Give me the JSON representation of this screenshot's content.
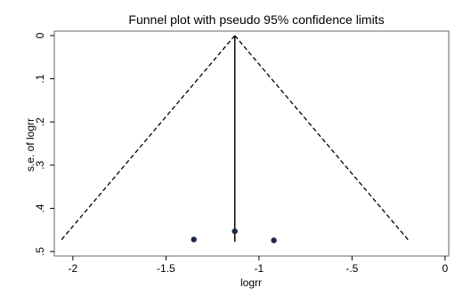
{
  "chart_data": {
    "type": "scatter",
    "title": "Funnel plot with pseudo 95% confidence limits",
    "xlabel": "logrr",
    "ylabel": "s.e. of logrr",
    "xlim": [
      -2.1,
      0.02
    ],
    "ylim": [
      0.5,
      0
    ],
    "y_reversed": true,
    "x_ticks": [
      -2,
      -1.5,
      -1,
      -0.5,
      0
    ],
    "x_tick_labels": [
      "-2",
      "-1.5",
      "-1",
      "-.5",
      "0"
    ],
    "y_ticks": [
      0,
      0.1,
      0.2,
      0.3,
      0.4,
      0.5
    ],
    "y_tick_labels": [
      "0",
      ".1",
      ".2",
      ".3",
      ".4",
      ".5"
    ],
    "grid": false,
    "legend": "none",
    "points": [
      {
        "x": -1.35,
        "y": 0.472
      },
      {
        "x": -1.13,
        "y": 0.453
      },
      {
        "x": -0.92,
        "y": 0.474
      }
    ],
    "pooled_estimate": {
      "x": -1.13,
      "y_from": 0,
      "y_to": 0.477
    },
    "ci_limits": {
      "apex": {
        "x": -1.13,
        "y": 0
      },
      "left_end": {
        "x": -2.07,
        "y": 0.477
      },
      "right_end": {
        "x": -0.19,
        "y": 0.477
      }
    },
    "colors": {
      "points": "#1a2a44",
      "lines": "#000000"
    }
  }
}
